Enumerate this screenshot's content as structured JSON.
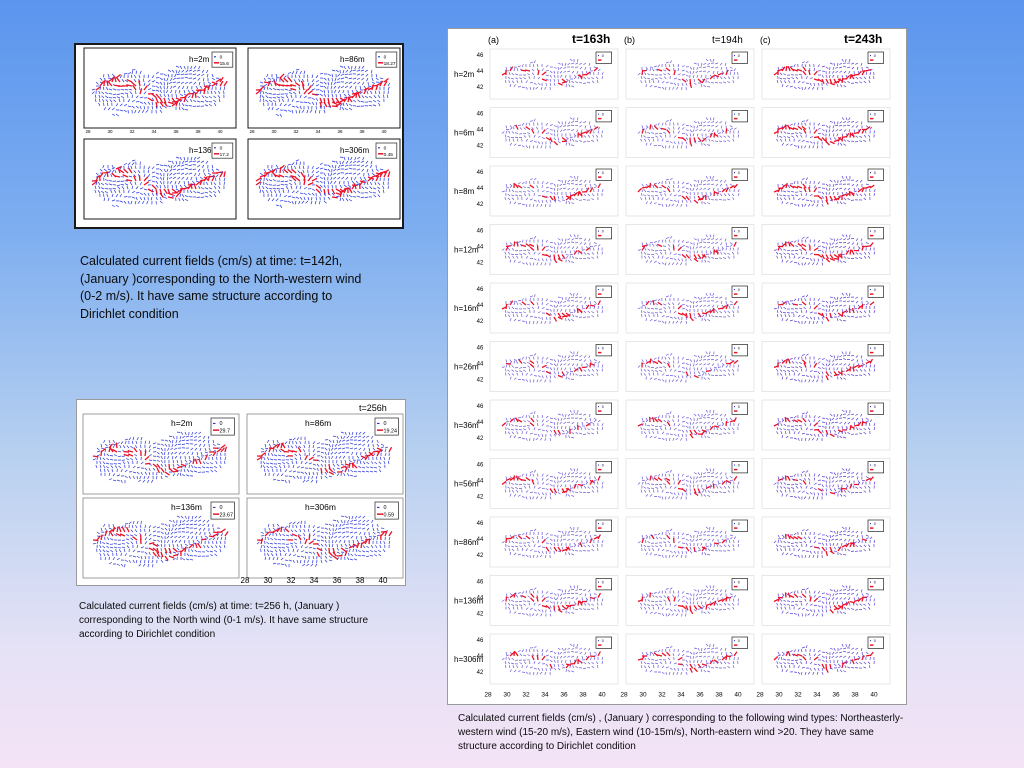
{
  "slide": {
    "background_top": "#5b95ee",
    "background_bottom": "#f4e3f6"
  },
  "figure_top_left": {
    "panels": [
      {
        "label": "h=2m",
        "legend_zero": "0",
        "legend_value": "15.6"
      },
      {
        "label": "h=86m",
        "legend_zero": "0",
        "legend_value": "18.27"
      },
      {
        "label": "h=136m",
        "legend_zero": "0",
        "legend_value": "17.2"
      },
      {
        "label": "h=306m",
        "legend_zero": "0",
        "legend_value": "0.45"
      }
    ],
    "x_ticks": [
      "28",
      "30",
      "32",
      "34",
      "36",
      "38",
      "40"
    ],
    "y_ticks": [
      "46",
      "44",
      "42"
    ]
  },
  "caption_top_left": "Calculated current  fields (cm/s)  at time: t=142h, (January  )corresponding to the North-western wind (0-2 m/s). It have same structure  according to Dirichlet condition",
  "figure_bottom_left": {
    "time_label": "t=256h",
    "panels": [
      {
        "label": "h=2m",
        "legend_zero": "0",
        "legend_value": "29.7"
      },
      {
        "label": "h=86m",
        "legend_zero": "0",
        "legend_value": "19.24"
      },
      {
        "label": "h=136m",
        "legend_zero": "0",
        "legend_value": "23.67"
      },
      {
        "label": "h=306m",
        "legend_zero": "0",
        "legend_value": "0.59"
      }
    ],
    "x_ticks": [
      "28",
      "30",
      "32",
      "34",
      "36",
      "38",
      "40"
    ]
  },
  "caption_bottom_left": "Calculated current  fields (cm/s) at time: t=256 h, (January  ) corresponding to the North wind (0-1 m/s). It have same structure according to Dirichlet condition",
  "figure_right": {
    "columns": [
      {
        "letter": "(a)",
        "time": "t=163h"
      },
      {
        "letter": "(b)",
        "time": "t=194h"
      },
      {
        "letter": "(c)",
        "time": "t=243h"
      }
    ],
    "rows": [
      "h=2m",
      "h=6m",
      "h=8m",
      "h=12m",
      "h=16m",
      "h=26m",
      "h=36m",
      "h=56m",
      "h=86m",
      "h=136m",
      "h=306m"
    ],
    "y_ticks": [
      "46",
      "44",
      "42"
    ],
    "x_ticks": [
      "28",
      "30",
      "32",
      "34",
      "36",
      "38",
      "40"
    ]
  },
  "caption_right": "Calculated current fields (cm/s) ,  (January  ) corresponding to the following wind types: Northeasterly-western  wind   (15-20 m/s), Eastern wind (10-15m/s), North-eastern wind >20. They have same structure  according to  Dirichlet condition"
}
